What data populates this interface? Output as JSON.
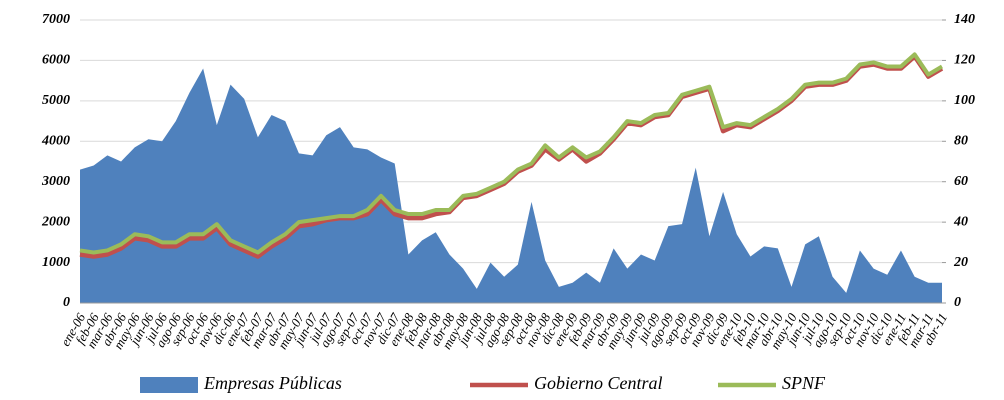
{
  "chart_data": {
    "type": "combo",
    "categories": [
      "ene-06",
      "feb-06",
      "mar-06",
      "abr-06",
      "may-06",
      "jun-06",
      "jul-06",
      "ago-06",
      "sep-06",
      "oct-06",
      "nov-06",
      "dic-06",
      "ene-07",
      "feb-07",
      "mar-07",
      "abr-07",
      "may-07",
      "jun-07",
      "jul-07",
      "ago-07",
      "sep-07",
      "oct-07",
      "nov-07",
      "dic-07",
      "ene-08",
      "feb-08",
      "mar-08",
      "abr-08",
      "may-08",
      "jun-08",
      "jul-08",
      "ago-08",
      "sep-08",
      "oct-08",
      "nov-08",
      "dic-08",
      "ene-09",
      "feb-09",
      "mar-09",
      "abr-09",
      "may-09",
      "jun-09",
      "jul-09",
      "ago-09",
      "sep-09",
      "oct-09",
      "nov-09",
      "dic-09",
      "ene-10",
      "feb-10",
      "mar-10",
      "abr-10",
      "may-10",
      "jun-10",
      "jul-10",
      "ago-10",
      "sep-10",
      "oct-10",
      "nov-10",
      "dic-10",
      "ene-11",
      "feb-11",
      "mar-11",
      "abr-11"
    ],
    "series": [
      {
        "name": "Empresas Públicas",
        "type": "area",
        "axis": "y",
        "color": "#4f81bd",
        "values": [
          3300,
          3400,
          3650,
          3500,
          3850,
          4050,
          4000,
          4500,
          5200,
          5800,
          4400,
          5400,
          5050,
          4100,
          4650,
          4500,
          3700,
          3650,
          4150,
          4350,
          3850,
          3800,
          3600,
          3450,
          1200,
          1550,
          1750,
          1200,
          850,
          350,
          1000,
          650,
          950,
          2500,
          1050,
          400,
          500,
          750,
          500,
          1350,
          850,
          1200,
          1050,
          1900,
          1950,
          3350,
          1650,
          2750,
          1700,
          1150,
          1400,
          1350,
          400,
          1450,
          1650,
          650,
          250,
          1300,
          850,
          700,
          1300,
          650,
          500,
          500
        ]
      },
      {
        "name": "Gobierno Central",
        "type": "line",
        "axis": "y2",
        "color": "#c0504d",
        "values": [
          24,
          23,
          24,
          27,
          32,
          31,
          28,
          28,
          32,
          32,
          37,
          29,
          26,
          23,
          28,
          32,
          38,
          39,
          41,
          42,
          42,
          44,
          51,
          44,
          42,
          42,
          44,
          45,
          52,
          53,
          56,
          59,
          65,
          68,
          76,
          71,
          76,
          70,
          74,
          81,
          89,
          88,
          92,
          93,
          102,
          104,
          106,
          85,
          88,
          87,
          91,
          95,
          100,
          107,
          108,
          108,
          110,
          117,
          118,
          116,
          116,
          122,
          112,
          116
        ]
      },
      {
        "name": "SPNF",
        "type": "line",
        "axis": "y2",
        "color": "#9bbb59",
        "values": [
          26,
          25,
          26,
          29,
          34,
          33,
          30,
          30,
          34,
          34,
          39,
          31,
          28,
          25,
          30,
          34,
          40,
          41,
          42,
          43,
          43,
          46,
          53,
          46,
          44,
          44,
          46,
          46,
          53,
          54,
          57,
          60,
          66,
          69,
          78,
          72,
          77,
          72,
          75,
          82,
          90,
          89,
          93,
          94,
          103,
          105,
          107,
          87,
          89,
          88,
          92,
          96,
          101,
          108,
          109,
          109,
          111,
          118,
          119,
          117,
          117,
          123,
          113,
          117
        ]
      }
    ],
    "ylim": [
      0,
      7000
    ],
    "yticks": [
      0,
      1000,
      2000,
      3000,
      4000,
      5000,
      6000,
      7000
    ],
    "y2lim": [
      0,
      140
    ],
    "y2ticks": [
      0,
      20,
      40,
      60,
      80,
      100,
      120,
      140
    ],
    "legend": "bottom"
  }
}
